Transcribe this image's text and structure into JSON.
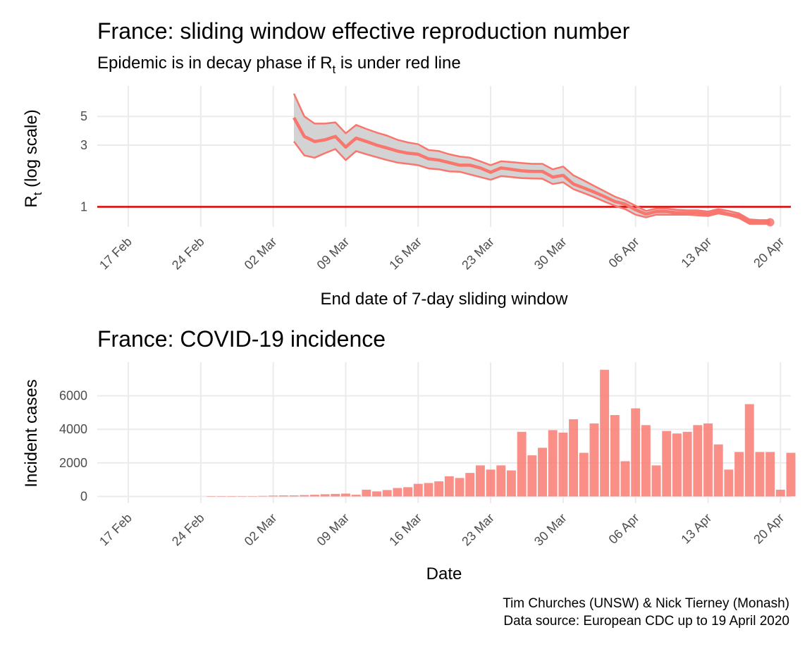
{
  "chart_data": [
    {
      "type": "line",
      "title": "France: sliding window effective reproduction number",
      "subtitle_prefix": "Epidemic is in decay phase if R",
      "subtitle_sub": "t",
      "subtitle_suffix": "  is under red line",
      "xlabel": "End date of 7-day sliding window",
      "ylabel_main": "R",
      "ylabel_sub": "t",
      "ylabel_suffix": " (log scale)",
      "log_scale_y": true,
      "ylim": [
        0.7,
        8.6
      ],
      "xlim": [
        "2020-02-14",
        "2020-04-21"
      ],
      "y_ticks": [
        1,
        3,
        5
      ],
      "x_ticks": [
        {
          "date": "2020-02-17",
          "label": "17 Feb"
        },
        {
          "date": "2020-02-24",
          "label": "24 Feb"
        },
        {
          "date": "2020-03-02",
          "label": "02 Mar"
        },
        {
          "date": "2020-03-09",
          "label": "09 Mar"
        },
        {
          "date": "2020-03-16",
          "label": "16 Mar"
        },
        {
          "date": "2020-03-23",
          "label": "23 Mar"
        },
        {
          "date": "2020-03-30",
          "label": "30 Mar"
        },
        {
          "date": "2020-04-06",
          "label": "06 Apr"
        },
        {
          "date": "2020-04-13",
          "label": "13 Apr"
        },
        {
          "date": "2020-04-20",
          "label": "20 Apr"
        }
      ],
      "reference_line": 1,
      "grid": true,
      "series": [
        {
          "dates": [
            "2020-03-04",
            "2020-03-05",
            "2020-03-06",
            "2020-03-07",
            "2020-03-08",
            "2020-03-09",
            "2020-03-10",
            "2020-03-11",
            "2020-03-12",
            "2020-03-13",
            "2020-03-14",
            "2020-03-15",
            "2020-03-16",
            "2020-03-17",
            "2020-03-18",
            "2020-03-19",
            "2020-03-20",
            "2020-03-21",
            "2020-03-22",
            "2020-03-23",
            "2020-03-24",
            "2020-03-25",
            "2020-03-26",
            "2020-03-27",
            "2020-03-28",
            "2020-03-29",
            "2020-03-30",
            "2020-03-31",
            "2020-04-01",
            "2020-04-02",
            "2020-04-03",
            "2020-04-04",
            "2020-04-05",
            "2020-04-06",
            "2020-04-07",
            "2020-04-08",
            "2020-04-09",
            "2020-04-10",
            "2020-04-11",
            "2020-04-12",
            "2020-04-13",
            "2020-04-14",
            "2020-04-15",
            "2020-04-16",
            "2020-04-17",
            "2020-04-18",
            "2020-04-19"
          ],
          "mean": [
            4.9,
            3.5,
            3.2,
            3.3,
            3.5,
            2.9,
            3.4,
            3.2,
            3.0,
            2.85,
            2.7,
            2.6,
            2.55,
            2.35,
            2.3,
            2.2,
            2.1,
            2.1,
            2.0,
            1.85,
            2.0,
            1.95,
            1.9,
            1.88,
            1.88,
            1.7,
            1.75,
            1.5,
            1.4,
            1.3,
            1.2,
            1.1,
            1.05,
            0.95,
            0.88,
            0.92,
            0.92,
            0.9,
            0.9,
            0.9,
            0.88,
            0.92,
            0.88,
            0.85,
            0.77,
            0.76,
            0.76
          ],
          "lower": [
            3.2,
            2.5,
            2.4,
            2.6,
            2.8,
            2.3,
            2.7,
            2.55,
            2.42,
            2.3,
            2.2,
            2.15,
            2.1,
            1.98,
            1.95,
            1.88,
            1.87,
            1.78,
            1.7,
            1.62,
            1.73,
            1.7,
            1.67,
            1.66,
            1.65,
            1.5,
            1.55,
            1.37,
            1.28,
            1.19,
            1.1,
            1.02,
            0.96,
            0.87,
            0.83,
            0.87,
            0.87,
            0.87,
            0.87,
            0.86,
            0.85,
            0.89,
            0.86,
            0.82,
            0.74,
            0.74,
            0.74
          ],
          "upper": [
            7.5,
            5.0,
            4.4,
            4.4,
            4.5,
            3.7,
            4.3,
            4.0,
            3.75,
            3.55,
            3.3,
            3.15,
            3.05,
            2.75,
            2.7,
            2.55,
            2.45,
            2.4,
            2.25,
            2.1,
            2.25,
            2.22,
            2.18,
            2.15,
            2.15,
            1.95,
            2.05,
            1.75,
            1.6,
            1.45,
            1.32,
            1.2,
            1.12,
            1.02,
            0.93,
            0.97,
            0.97,
            0.95,
            0.94,
            0.94,
            0.92,
            0.96,
            0.93,
            0.89,
            0.8,
            0.79,
            0.79
          ]
        }
      ]
    },
    {
      "type": "bar",
      "title": "France: COVID-19 incidence",
      "xlabel": "Date",
      "ylabel": "Incident cases",
      "ylim": [
        -400,
        8000
      ],
      "xlim": [
        "2020-02-14",
        "2020-04-21"
      ],
      "y_ticks": [
        0,
        2000,
        4000,
        6000
      ],
      "x_ticks": [
        {
          "date": "2020-02-17",
          "label": "17 Feb"
        },
        {
          "date": "2020-02-24",
          "label": "24 Feb"
        },
        {
          "date": "2020-03-02",
          "label": "02 Mar"
        },
        {
          "date": "2020-03-09",
          "label": "09 Mar"
        },
        {
          "date": "2020-03-16",
          "label": "16 Mar"
        },
        {
          "date": "2020-03-23",
          "label": "23 Mar"
        },
        {
          "date": "2020-03-30",
          "label": "30 Mar"
        },
        {
          "date": "2020-04-06",
          "label": "06 Apr"
        },
        {
          "date": "2020-04-13",
          "label": "13 Apr"
        },
        {
          "date": "2020-04-20",
          "label": "20 Apr"
        }
      ],
      "grid": true,
      "start_date": "2020-02-25",
      "values": [
        2,
        2,
        2,
        20,
        20,
        30,
        50,
        60,
        60,
        80,
        100,
        130,
        150,
        170,
        100,
        400,
        300,
        380,
        500,
        550,
        750,
        800,
        900,
        1200,
        1100,
        1400,
        1850,
        1600,
        1850,
        1550,
        3850,
        2450,
        2900,
        3950,
        3800,
        4600,
        2600,
        4350,
        7550,
        4850,
        2100,
        5250,
        4250,
        1850,
        3900,
        3750,
        3850,
        4250,
        4350,
        3100,
        1600,
        2650,
        5500,
        2650,
        2650,
        400,
        2600
      ]
    }
  ],
  "caption": {
    "line1": "Tim Churches (UNSW) & Nick Tierney (Monash)",
    "line2": "Data source: European CDC up to 19 April 2020"
  },
  "colors": {
    "series": "#f8766d",
    "ribbon": "#d3d3d3",
    "reference": "#e00000",
    "grid": "#ebebeb"
  }
}
